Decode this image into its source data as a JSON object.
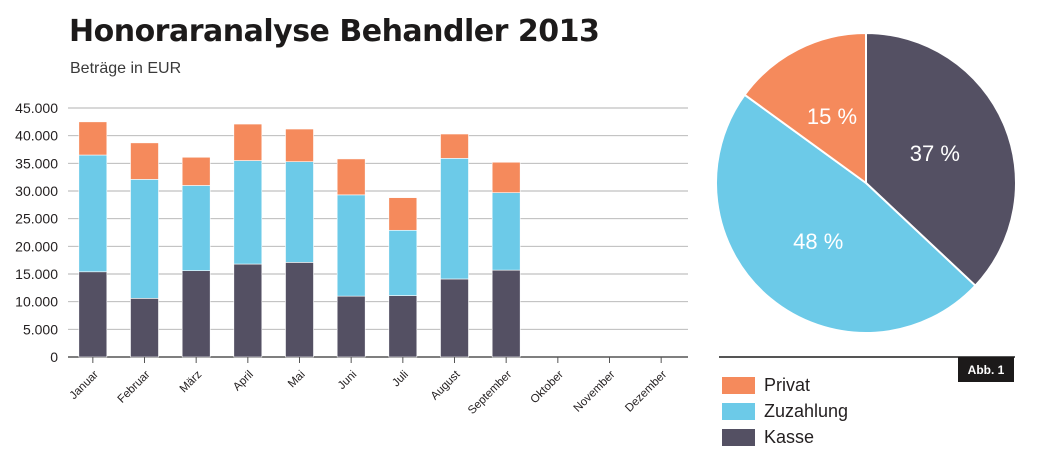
{
  "header": {
    "title": "Honoraranalyse Behandler 2013",
    "subtitle": "Beträge in EUR"
  },
  "badge": "Abb. 1",
  "colors": {
    "privat": "#f58a5c",
    "zuzahlung": "#6ccae8",
    "kasse": "#545063",
    "grid": "#b0b0b0",
    "axis": "#555555",
    "text": "#231f20"
  },
  "chart_data": [
    {
      "type": "bar",
      "stacked": true,
      "categories": [
        "Januar",
        "Februar",
        "März",
        "April",
        "Mai",
        "Juni",
        "Juli",
        "August",
        "September",
        "Oktober",
        "November",
        "Dezember"
      ],
      "series": [
        {
          "name": "Kasse",
          "color": "#545063",
          "values": [
            15400,
            10600,
            15600,
            16800,
            17100,
            11000,
            11100,
            14100,
            15700,
            null,
            null,
            null
          ]
        },
        {
          "name": "Zuzahlung",
          "color": "#6ccae8",
          "values": [
            21100,
            21500,
            15400,
            18700,
            18200,
            18300,
            11800,
            21800,
            14000,
            null,
            null,
            null
          ]
        },
        {
          "name": "Privat",
          "color": "#f58a5c",
          "values": [
            6000,
            6600,
            5100,
            6600,
            5900,
            6500,
            5900,
            4400,
            5500,
            null,
            null,
            null
          ]
        }
      ],
      "yticks": [
        "0",
        "5.000",
        "10.000",
        "15.000",
        "20.000",
        "25.000",
        "30.000",
        "35.000",
        "40.000",
        "45.000"
      ],
      "ylim": [
        0,
        45000
      ],
      "grid": true
    },
    {
      "type": "pie",
      "slices": [
        {
          "name": "Kasse",
          "value": 37,
          "label": "37 %",
          "color": "#545063"
        },
        {
          "name": "Zuzahlung",
          "value": 48,
          "label": "48 %",
          "color": "#6ccae8"
        },
        {
          "name": "Privat",
          "value": 15,
          "label": "15 %",
          "color": "#f58a5c"
        }
      ],
      "legend": [
        {
          "name": "Privat",
          "color": "#f58a5c"
        },
        {
          "name": "Zuzahlung",
          "color": "#6ccae8"
        },
        {
          "name": "Kasse",
          "color": "#545063"
        }
      ],
      "legend_position": "bottom-left"
    }
  ]
}
